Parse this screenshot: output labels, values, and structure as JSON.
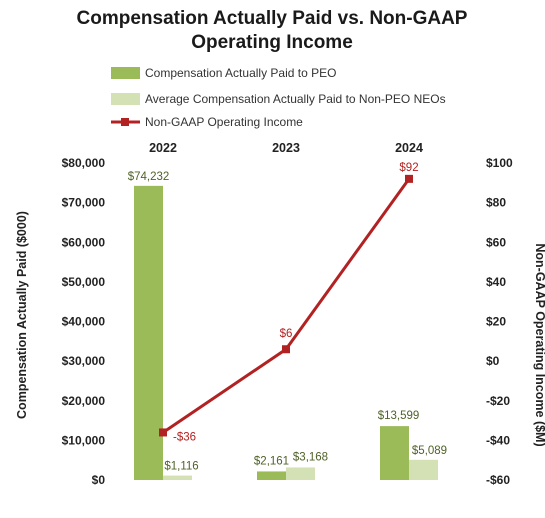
{
  "title_line1": "Compensation Actually Paid vs. Non-GAAP",
  "title_line2": "Operating Income",
  "colors": {
    "peo_bar": "#9bbb59",
    "neo_bar": "#d3e1b4",
    "line": "#b22222",
    "peo_label": "#4f6228",
    "line_label": "#b22222"
  },
  "legend": [
    {
      "label": "Compensation Actually Paid to PEO",
      "kind": "bar",
      "series": 0
    },
    {
      "label": "Average Compensation Actually Paid to Non-PEO NEOs",
      "kind": "bar",
      "series": 1
    },
    {
      "label": "Non-GAAP Operating Income",
      "kind": "line",
      "series": 2
    }
  ],
  "chart_data": {
    "type": "bar",
    "categories": [
      "2022",
      "2023",
      "2024"
    ],
    "series": [
      {
        "name": "Compensation Actually Paid to PEO",
        "type": "bar",
        "axis": "left",
        "values": [
          74232,
          2161,
          13599
        ],
        "labels": [
          "$74,232",
          "$2,161",
          "$13,599"
        ]
      },
      {
        "name": "Average Compensation Actually Paid to Non-PEO NEOs",
        "type": "bar",
        "axis": "left",
        "values": [
          1116,
          3168,
          5089
        ],
        "labels": [
          "$1,116",
          "$3,168",
          "$5,089"
        ]
      },
      {
        "name": "Non-GAAP Operating Income",
        "type": "line",
        "axis": "right",
        "values": [
          -36,
          6,
          92
        ],
        "labels": [
          "-$36",
          "$6",
          "$92"
        ]
      }
    ],
    "ylabel": "Compensation Actually Paid ($000)",
    "y2label": "Non-GAAP Operating Income ($M)",
    "ylim": [
      0,
      80000
    ],
    "y2lim": [
      -60,
      100
    ],
    "yticks": [
      0,
      10000,
      20000,
      30000,
      40000,
      50000,
      60000,
      70000,
      80000
    ],
    "ytick_labels": [
      "$0",
      "$10,000",
      "$20,000",
      "$30,000",
      "$40,000",
      "$50,000",
      "$60,000",
      "$70,000",
      "$80,000"
    ],
    "y2ticks": [
      -60,
      -40,
      -20,
      0,
      20,
      40,
      60,
      80,
      100
    ],
    "y2tick_labels": [
      "-$60",
      "-$40",
      "-$20",
      "$0",
      "$20",
      "$40",
      "$60",
      "$80",
      "$100"
    ],
    "category_axis_position": "top",
    "grid": false,
    "legend_position": "top"
  }
}
